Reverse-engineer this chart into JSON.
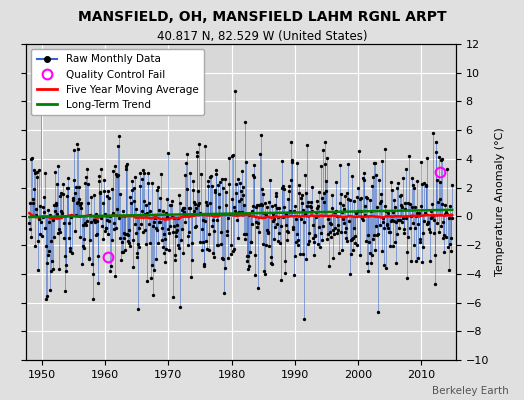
{
  "title": "MANSFIELD, OH, MANSFIELD LAHM RGNL ARPT",
  "subtitle": "40.817 N, 82.529 W (United States)",
  "ylabel": "Temperature Anomaly (°C)",
  "credit": "Berkeley Earth",
  "ylim": [
    -10,
    12
  ],
  "yticks": [
    -10,
    -8,
    -6,
    -4,
    -2,
    0,
    2,
    4,
    6,
    8,
    10,
    12
  ],
  "xlim": [
    1947.5,
    2015.5
  ],
  "xticks": [
    1950,
    1960,
    1970,
    1980,
    1990,
    2000,
    2010
  ],
  "start_year": 1948,
  "end_year": 2014,
  "bg_color": "#e0e0e0",
  "plot_bg_color": "#d8d8d8",
  "grid_color": "white",
  "raw_line_color": "#3366cc",
  "raw_dot_color": "black",
  "moving_avg_color": "red",
  "trend_color": "green",
  "qc_fail_color": "magenta",
  "seed": 12345
}
